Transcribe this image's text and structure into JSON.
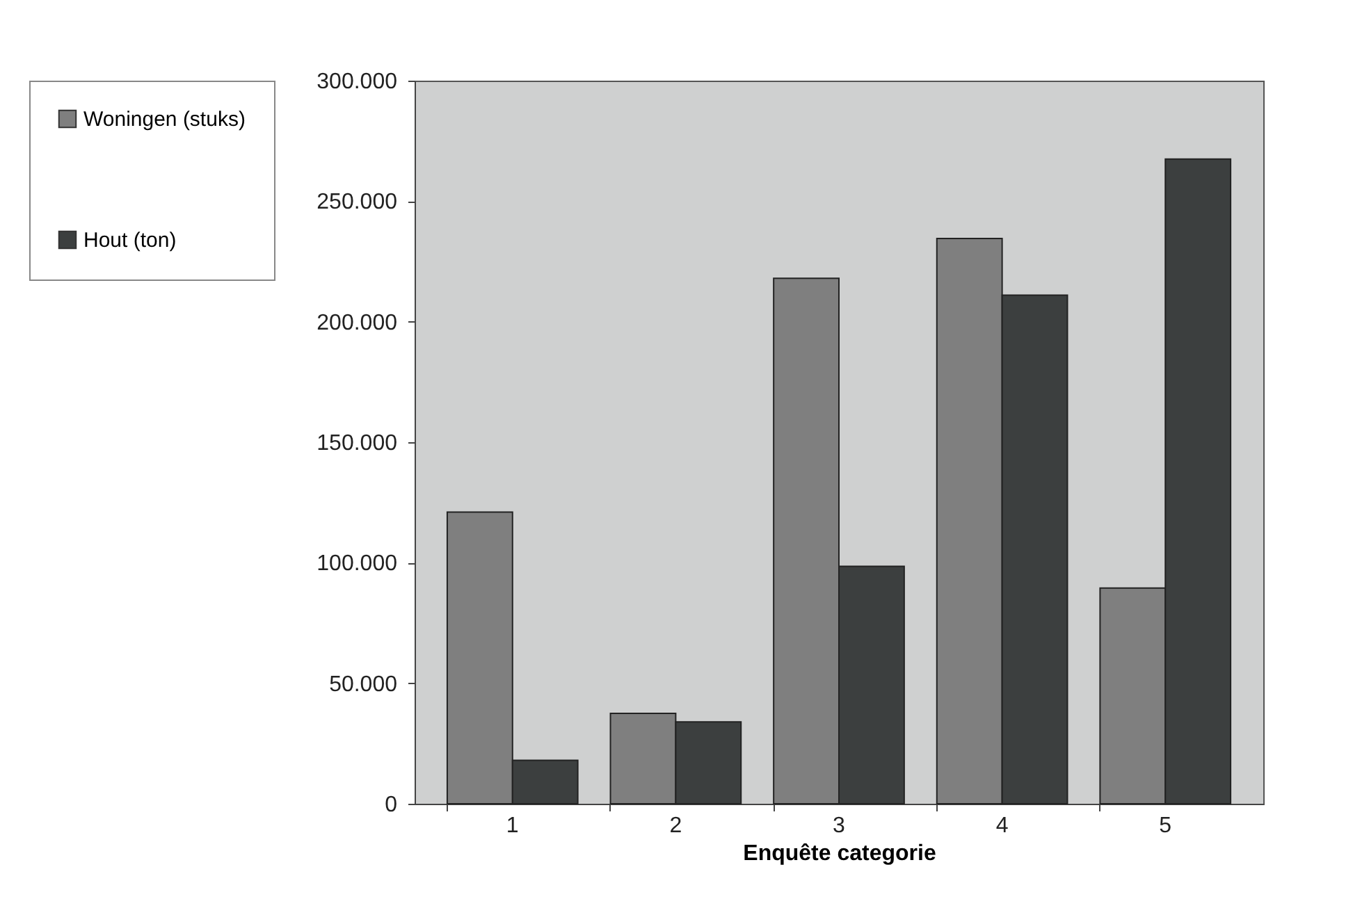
{
  "chart_data": {
    "type": "bar",
    "xlabel": "Enquête categorie",
    "categories": [
      "1",
      "2",
      "3",
      "4",
      "5"
    ],
    "series": [
      {
        "name": "Woningen (stuks)",
        "color": "#7f7f7f",
        "values": [
          121000,
          37500,
          218000,
          234500,
          89500
        ]
      },
      {
        "name": "Hout (ton)",
        "color": "#3c3f3f",
        "values": [
          18000,
          34000,
          98500,
          211000,
          267500
        ]
      }
    ],
    "ylim": [
      0,
      300000
    ],
    "yticks": [
      {
        "value": 0,
        "label": "0"
      },
      {
        "value": 50000,
        "label": "50.000"
      },
      {
        "value": 100000,
        "label": "100.000"
      },
      {
        "value": 150000,
        "label": "150.000"
      },
      {
        "value": 200000,
        "label": "200.000"
      },
      {
        "value": 250000,
        "label": "250.000"
      },
      {
        "value": 300000,
        "label": "300.000"
      }
    ],
    "grid": false,
    "legend": "left"
  }
}
